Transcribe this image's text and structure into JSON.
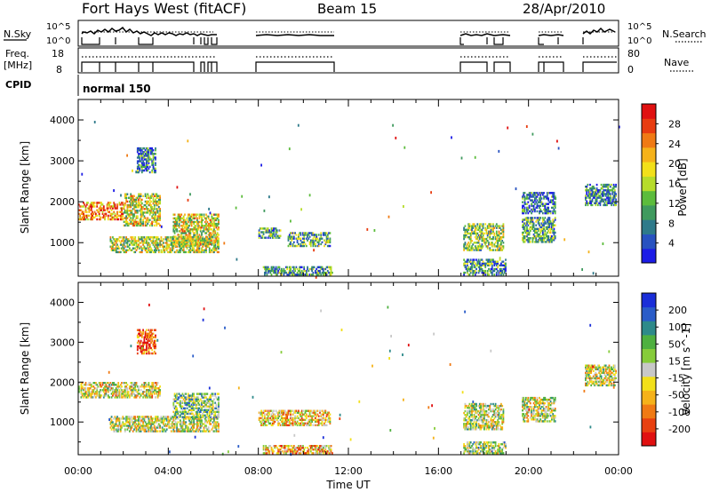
{
  "header": {
    "title": "Fort Hays West (fitACF)",
    "beam": "Beam 15",
    "date": "28/Apr/2010"
  },
  "strips": {
    "nsky": {
      "label": "N.Sky",
      "ticks": [
        "10^5",
        "10^0"
      ],
      "right_label": "N.Search",
      "right_ticks": [
        "10^5",
        "10^0"
      ]
    },
    "freq": {
      "label_line1": "Freq.",
      "label_line2": "[MHz]",
      "ticks": [
        "18",
        "8"
      ],
      "right_label": "Nave",
      "right_ticks": [
        "80",
        "0"
      ]
    },
    "cpid": {
      "label": "CPID",
      "value": "normal 150"
    }
  },
  "chart_data": [
    {
      "type": "heatmap",
      "title": "",
      "xlabel": "Time UT",
      "ylabel": "Slant Range [km]",
      "xlim": [
        "00:00",
        "24:00"
      ],
      "ylim": [
        180,
        4500
      ],
      "x_ticks": [
        "00:00",
        "04:00",
        "08:00",
        "12:00",
        "16:00",
        "20:00",
        "00:00"
      ],
      "y_ticks": [
        1000,
        2000,
        3000,
        4000
      ],
      "colorbar": {
        "label": "Power [dB]",
        "ticks": [
          "4",
          "8",
          "12",
          "16",
          "20",
          "24",
          "28"
        ],
        "colors": [
          "#1c1ce6",
          "#2852c0",
          "#2e7a8a",
          "#3f9a5e",
          "#5cbc3c",
          "#b6dc2a",
          "#f2e01a",
          "#f5b21a",
          "#f07a14",
          "#e83c10",
          "#e01010"
        ]
      },
      "regions": [
        {
          "t0": 0.0,
          "t1": 2.0,
          "r0": 1550,
          "r1": 2000,
          "level": 0.75
        },
        {
          "t0": 2.0,
          "t1": 3.6,
          "r0": 1400,
          "r1": 2200,
          "level": 0.55
        },
        {
          "t0": 1.4,
          "t1": 6.2,
          "r0": 750,
          "r1": 1150,
          "level": 0.5
        },
        {
          "t0": 4.2,
          "t1": 6.2,
          "r0": 900,
          "r1": 1700,
          "level": 0.55
        },
        {
          "t0": 2.6,
          "t1": 3.4,
          "r0": 2700,
          "r1": 3300,
          "level": 0.25
        },
        {
          "t0": 8.0,
          "t1": 9.0,
          "r0": 1100,
          "r1": 1350,
          "level": 0.35
        },
        {
          "t0": 9.3,
          "t1": 11.2,
          "r0": 900,
          "r1": 1250,
          "level": 0.35
        },
        {
          "t0": 8.2,
          "t1": 11.3,
          "r0": 200,
          "r1": 400,
          "level": 0.3
        },
        {
          "t0": 17.1,
          "t1": 18.9,
          "r0": 800,
          "r1": 1450,
          "level": 0.45
        },
        {
          "t0": 19.7,
          "t1": 21.2,
          "r0": 1000,
          "r1": 1600,
          "level": 0.35
        },
        {
          "t0": 19.7,
          "t1": 21.2,
          "r0": 1700,
          "r1": 2200,
          "level": 0.2
        },
        {
          "t0": 22.5,
          "t1": 23.9,
          "r0": 1900,
          "r1": 2400,
          "level": 0.25
        },
        {
          "t0": 17.1,
          "t1": 19.0,
          "r0": 200,
          "r1": 600,
          "level": 0.3
        }
      ]
    },
    {
      "type": "heatmap",
      "title": "",
      "xlabel": "Time UT",
      "ylabel": "Slant Range [km]",
      "xlim": [
        "00:00",
        "24:00"
      ],
      "ylim": [
        180,
        4500
      ],
      "x_ticks": [
        "00:00",
        "04:00",
        "08:00",
        "12:00",
        "16:00",
        "20:00",
        "00:00"
      ],
      "y_ticks": [
        1000,
        2000,
        3000,
        4000
      ],
      "colorbar": {
        "label": "Velocity [m s^-1]",
        "ticks": [
          "200",
          "100",
          "50",
          "15",
          "-15",
          "-50",
          "-100",
          "-200"
        ],
        "colors": [
          "#1a2ed8",
          "#2a5cc8",
          "#2e8a8a",
          "#4fb040",
          "#86cc3a",
          "#c8c8c8",
          "#f2e01a",
          "#f5b21a",
          "#f07a14",
          "#e84010",
          "#e01010"
        ]
      },
      "regions": [
        {
          "t0": 0.0,
          "t1": 3.6,
          "r0": 1600,
          "r1": 2000,
          "level": 0.55
        },
        {
          "t0": 1.4,
          "t1": 6.2,
          "r0": 750,
          "r1": 1150,
          "level": 0.5
        },
        {
          "t0": 4.2,
          "t1": 6.2,
          "r0": 1100,
          "r1": 1700,
          "level": 0.4
        },
        {
          "t0": 2.6,
          "t1": 3.4,
          "r0": 2700,
          "r1": 3300,
          "level": 0.9
        },
        {
          "t0": 8.0,
          "t1": 11.2,
          "r0": 900,
          "r1": 1300,
          "level": 0.6
        },
        {
          "t0": 8.2,
          "t1": 11.3,
          "r0": 200,
          "r1": 400,
          "level": 0.65
        },
        {
          "t0": 17.1,
          "t1": 18.9,
          "r0": 800,
          "r1": 1450,
          "level": 0.5
        },
        {
          "t0": 19.7,
          "t1": 21.2,
          "r0": 1000,
          "r1": 1600,
          "level": 0.5
        },
        {
          "t0": 22.5,
          "t1": 23.9,
          "r0": 1900,
          "r1": 2400,
          "level": 0.5
        },
        {
          "t0": 17.1,
          "t1": 19.0,
          "r0": 200,
          "r1": 500,
          "level": 0.45
        }
      ]
    }
  ]
}
